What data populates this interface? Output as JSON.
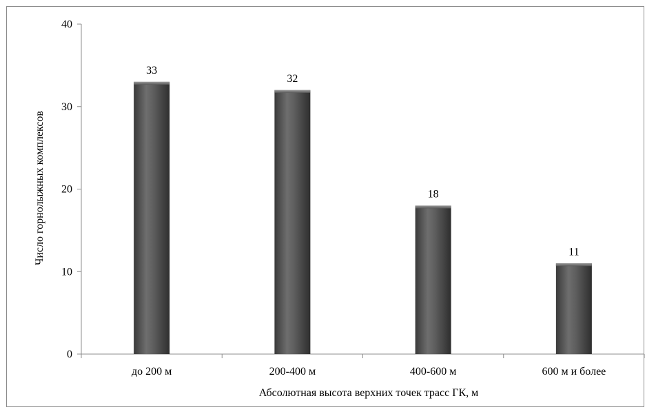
{
  "chart_data": {
    "type": "bar",
    "categories": [
      "до 200 м",
      "200-400 м",
      "400-600 м",
      "600 м и более"
    ],
    "values": [
      33,
      32,
      18,
      11
    ],
    "xlabel": "Абсолютная высота верхних точек трасс ГК, м",
    "ylabel": "Число горнолыжных комплексов",
    "ylim": [
      0,
      40
    ],
    "yticks": [
      0,
      10,
      20,
      30,
      40
    ],
    "grid": false,
    "legend": "none",
    "bar_color": "#5a5a5a",
    "axis_color": "#8c8c8c"
  }
}
